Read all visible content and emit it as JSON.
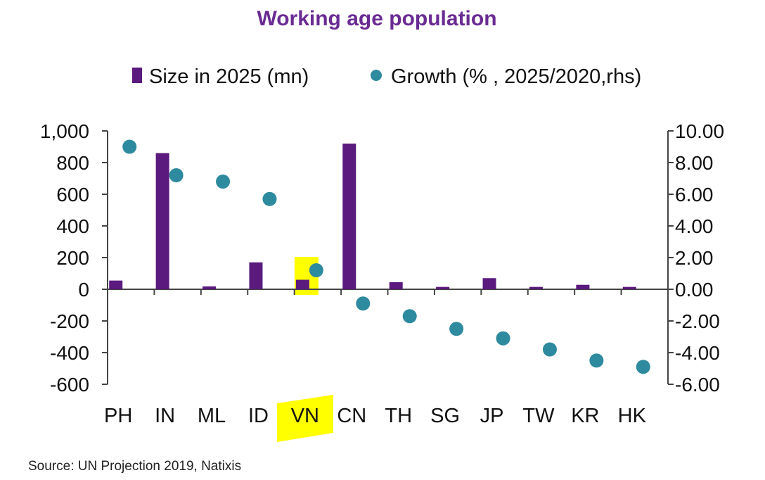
{
  "chart_data": {
    "type": "bar",
    "title": "Working age population",
    "categories": [
      "PH",
      "IN",
      "ML",
      "ID",
      "VN",
      "CN",
      "TH",
      "SG",
      "JP",
      "TW",
      "KR",
      "HK"
    ],
    "series": [
      {
        "name": "Size in 2025 (mn)",
        "type": "bar",
        "axis": "left",
        "color": "#5b1a7e",
        "values": [
          55,
          860,
          18,
          170,
          60,
          920,
          45,
          15,
          70,
          15,
          28,
          15
        ]
      },
      {
        "name": "Growth (% , 2025/2020,rhs)",
        "type": "scatter",
        "axis": "right",
        "color": "#2e8a9e",
        "values": [
          9.0,
          7.2,
          6.8,
          5.7,
          1.2,
          -0.9,
          -1.7,
          -2.5,
          -3.1,
          -3.8,
          -4.5,
          -4.9
        ]
      }
    ],
    "y_left": {
      "lim": [
        -600,
        1000
      ],
      "ticks": [
        1000,
        800,
        600,
        400,
        200,
        0,
        -200,
        -400,
        -600
      ],
      "tick_labels": [
        "1,000",
        "800",
        "600",
        "400",
        "200",
        "0",
        "-200",
        "-400",
        "-600"
      ]
    },
    "y_right": {
      "lim": [
        -6,
        10
      ],
      "ticks": [
        10,
        8,
        6,
        4,
        2,
        0,
        -2,
        -4,
        -6
      ],
      "tick_labels": [
        "10.00",
        "8.00",
        "6.00",
        "4.00",
        "2.00",
        "0.00",
        "-2.00",
        "-4.00",
        "-6.00"
      ]
    },
    "highlight_category": "VN",
    "highlight_color": "#ffff00",
    "legend_position": "top",
    "grid": false
  },
  "colors": {
    "title": "#6a2b93",
    "axis": "#444444",
    "legend_text": "#111111"
  },
  "source": "Source:  UN Projection 2019,  Natixis"
}
